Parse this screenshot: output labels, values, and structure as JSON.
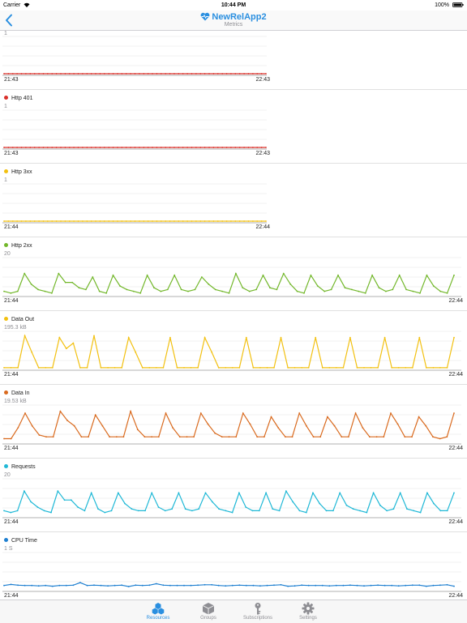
{
  "status_bar": {
    "carrier": "Carrier",
    "time": "10:44 PM",
    "battery": "100%"
  },
  "nav": {
    "title": "NewRelApp2",
    "subtitle": "Metrics"
  },
  "colors": {
    "accent": "#2a8fe0",
    "red": "#d9302a",
    "yellow": "#f2c010",
    "green": "#72b72a",
    "orange": "#d96a1e",
    "cyan": "#1fb8d6",
    "blue": "#1e7fd0"
  },
  "chart_data": [
    {
      "type": "line",
      "title": "",
      "max_label": "1",
      "x_start": "21:43",
      "x_end": "22:43",
      "ylim": [
        0,
        1
      ],
      "color": "#d9302a",
      "values": [
        0,
        0,
        0,
        0,
        0,
        0,
        0,
        0,
        0,
        0,
        0,
        0,
        0,
        0,
        0,
        0,
        0,
        0,
        0,
        0,
        0,
        0,
        0,
        0,
        0,
        0,
        0,
        0,
        0,
        0,
        0,
        0,
        0,
        0,
        0,
        0,
        0,
        0,
        0,
        0,
        0,
        0,
        0,
        0,
        0,
        0,
        0,
        0,
        0,
        0,
        0,
        0,
        0,
        0,
        0,
        0,
        0,
        0,
        0,
        0,
        0
      ]
    },
    {
      "type": "line",
      "title": "Http 401",
      "max_label": "1",
      "x_start": "21:43",
      "x_end": "22:43",
      "ylim": [
        0,
        1
      ],
      "color": "#d9302a",
      "values": [
        0,
        0,
        0,
        0,
        0,
        0,
        0,
        0,
        0,
        0,
        0,
        0,
        0,
        0,
        0,
        0,
        0,
        0,
        0,
        0,
        0,
        0,
        0,
        0,
        0,
        0,
        0,
        0,
        0,
        0,
        0,
        0,
        0,
        0,
        0,
        0,
        0,
        0,
        0,
        0,
        0,
        0,
        0,
        0,
        0,
        0,
        0,
        0,
        0,
        0,
        0,
        0,
        0,
        0,
        0,
        0,
        0,
        0,
        0,
        0,
        0
      ]
    },
    {
      "type": "line",
      "title": "Http 3xx",
      "max_label": "1",
      "x_start": "21:44",
      "x_end": "22:44",
      "ylim": [
        0,
        1
      ],
      "color": "#f2c010",
      "values": [
        0,
        0,
        0,
        0,
        0,
        0,
        0,
        0,
        0,
        0,
        0,
        0,
        0,
        0,
        0,
        0,
        0,
        0,
        0,
        0,
        0,
        0,
        0,
        0,
        0,
        0,
        0,
        0,
        0,
        0,
        0,
        0,
        0,
        0,
        0,
        0,
        0,
        0,
        0,
        0,
        0,
        0,
        0,
        0,
        0,
        0,
        0,
        0,
        0,
        0,
        0,
        0,
        0,
        0,
        0,
        0,
        0,
        0,
        0,
        0,
        0
      ]
    },
    {
      "type": "line",
      "title": "Http 2xx",
      "max_label": "20",
      "x_start": "21:44",
      "x_end": "22:44",
      "ylim": [
        0,
        20
      ],
      "color": "#72b72a",
      "values": [
        2,
        1,
        2,
        12,
        6,
        3,
        2,
        1,
        12,
        7,
        7,
        4,
        3,
        10,
        2,
        1,
        11,
        5,
        3,
        2,
        1,
        11,
        4,
        2,
        3,
        11,
        3,
        2,
        3,
        10,
        6,
        3,
        2,
        1,
        12,
        4,
        2,
        3,
        11,
        4,
        3,
        12,
        6,
        2,
        1,
        11,
        5,
        2,
        3,
        11,
        4,
        3,
        2,
        1,
        11,
        4,
        2,
        3,
        11,
        3,
        2,
        1,
        11,
        5,
        2,
        1,
        11
      ]
    },
    {
      "type": "line",
      "title": "Data Out",
      "max_label": "195.3 kB",
      "x_start": "21:44",
      "x_end": "22:44",
      "ylim": [
        0,
        195.3
      ],
      "color": "#f2c010",
      "values": [
        5,
        5,
        5,
        180,
        90,
        5,
        5,
        5,
        170,
        110,
        140,
        5,
        5,
        180,
        5,
        5,
        5,
        5,
        170,
        90,
        5,
        5,
        5,
        5,
        170,
        5,
        5,
        5,
        5,
        170,
        90,
        5,
        5,
        5,
        5,
        170,
        5,
        5,
        5,
        5,
        170,
        5,
        5,
        5,
        5,
        170,
        5,
        5,
        5,
        5,
        170,
        5,
        5,
        5,
        5,
        170,
        5,
        5,
        5,
        5,
        170,
        5,
        5,
        5,
        5,
        170
      ]
    },
    {
      "type": "line",
      "title": "Data In",
      "max_label": "19.53 kB",
      "x_start": "21:44",
      "x_end": "22:44",
      "ylim": [
        0,
        19.53
      ],
      "color": "#d96a1e",
      "values": [
        2,
        2,
        8,
        16,
        9,
        4,
        3,
        3,
        17,
        12,
        9,
        3,
        3,
        15,
        9,
        3,
        3,
        3,
        17,
        7,
        3,
        3,
        3,
        16,
        8,
        3,
        3,
        3,
        16,
        10,
        5,
        3,
        3,
        3,
        16,
        10,
        3,
        3,
        14,
        8,
        3,
        3,
        16,
        9,
        3,
        3,
        14,
        9,
        3,
        3,
        16,
        8,
        3,
        3,
        3,
        16,
        10,
        3,
        3,
        14,
        9,
        3,
        2,
        3,
        16
      ]
    },
    {
      "type": "line",
      "title": "Requests",
      "max_label": "20",
      "x_start": "21:44",
      "x_end": "22:44",
      "ylim": [
        0,
        20
      ],
      "color": "#1fb8d6",
      "values": [
        3,
        2,
        3,
        14,
        8,
        5,
        3,
        2,
        14,
        9,
        9,
        5,
        3,
        13,
        4,
        2,
        3,
        13,
        7,
        4,
        3,
        3,
        13,
        5,
        3,
        4,
        13,
        4,
        3,
        4,
        13,
        8,
        4,
        3,
        2,
        13,
        5,
        3,
        3,
        13,
        4,
        3,
        14,
        8,
        3,
        2,
        13,
        7,
        3,
        3,
        13,
        6,
        4,
        3,
        2,
        13,
        6,
        3,
        4,
        13,
        4,
        3,
        2,
        13,
        7,
        3,
        3,
        13
      ]
    },
    {
      "type": "line",
      "title": "CPU Time",
      "max_label": "1 S",
      "x_start": "21:44",
      "x_end": "22:44",
      "ylim": [
        0,
        1
      ],
      "color": "#1e7fd0",
      "values": [
        0.12,
        0.15,
        0.13,
        0.12,
        0.12,
        0.11,
        0.12,
        0.1,
        0.12,
        0.12,
        0.13,
        0.2,
        0.12,
        0.13,
        0.12,
        0.11,
        0.12,
        0.13,
        0.09,
        0.13,
        0.12,
        0.13,
        0.17,
        0.13,
        0.12,
        0.12,
        0.12,
        0.12,
        0.13,
        0.14,
        0.14,
        0.12,
        0.11,
        0.12,
        0.13,
        0.12,
        0.12,
        0.11,
        0.12,
        0.13,
        0.14,
        0.1,
        0.11,
        0.13,
        0.12,
        0.12,
        0.12,
        0.11,
        0.12,
        0.12,
        0.13,
        0.12,
        0.11,
        0.12,
        0.13,
        0.12,
        0.12,
        0.11,
        0.12,
        0.13,
        0.13,
        0.1,
        0.12,
        0.13,
        0.14,
        0.1
      ]
    }
  ],
  "tabs": [
    {
      "label": "Resources",
      "icon": "resources-icon",
      "active": true
    },
    {
      "label": "Groups",
      "icon": "groups-icon",
      "active": false
    },
    {
      "label": "Subscriptions",
      "icon": "subscriptions-icon",
      "active": false
    },
    {
      "label": "Settings",
      "icon": "settings-icon",
      "active": false
    }
  ]
}
